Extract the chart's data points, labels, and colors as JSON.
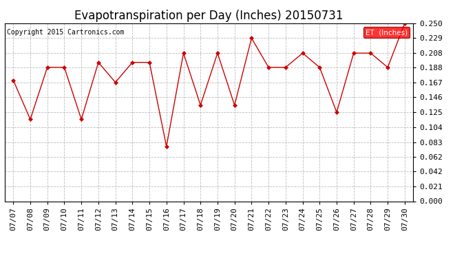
{
  "title": "Evapotranspiration per Day (Inches) 20150731",
  "copyright": "Copyright 2015 Cartronics.com",
  "legend_label": "ET  (Inches)",
  "x_labels": [
    "07/07",
    "07/08",
    "07/09",
    "07/10",
    "07/11",
    "07/12",
    "07/13",
    "07/14",
    "07/15",
    "07/16",
    "07/17",
    "07/18",
    "07/19",
    "07/20",
    "07/21",
    "07/22",
    "07/23",
    "07/24",
    "07/25",
    "07/26",
    "07/27",
    "07/28",
    "07/29",
    "07/30"
  ],
  "y_values": [
    0.17,
    0.115,
    0.188,
    0.188,
    0.115,
    0.195,
    0.167,
    0.195,
    0.195,
    0.077,
    0.208,
    0.135,
    0.208,
    0.135,
    0.229,
    0.188,
    0.188,
    0.208,
    0.188,
    0.125,
    0.208,
    0.208,
    0.188,
    0.25
  ],
  "ylim": [
    0.0,
    0.25
  ],
  "yticks": [
    0.0,
    0.021,
    0.042,
    0.062,
    0.083,
    0.104,
    0.125,
    0.146,
    0.167,
    0.188,
    0.208,
    0.229,
    0.25
  ],
  "line_color": "#cc0000",
  "marker_color": "#cc0000",
  "bg_color": "#ffffff",
  "grid_color": "#bbbbbb",
  "title_fontsize": 12,
  "tick_fontsize": 8,
  "copyright_fontsize": 7
}
